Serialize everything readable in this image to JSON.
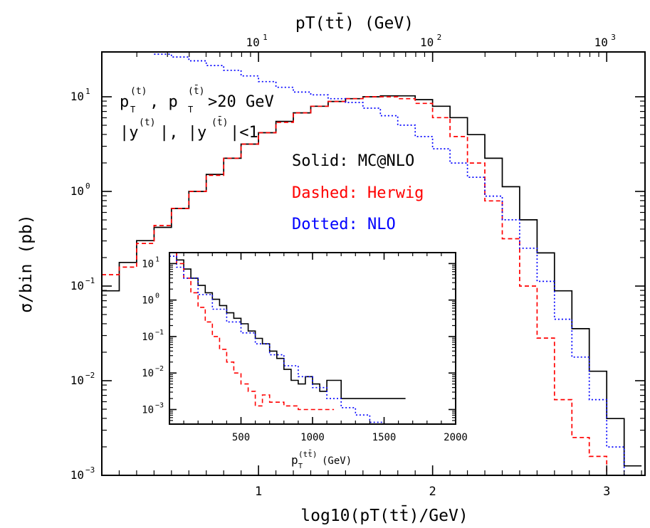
{
  "chart_data": [
    {
      "type": "line",
      "xlabel": "log10(pT(tt̄)/GeV)",
      "ylabel": "σ/bin (pb)",
      "top_axis_label": "pT(tt̄) (GeV)",
      "xlim": [
        0.1,
        3.22
      ],
      "ylim_log10": [
        -3,
        0.45
      ],
      "y_scale": "log",
      "x_ticks": [
        "1",
        "2",
        "3"
      ],
      "x_tick_values": [
        1,
        2,
        3
      ],
      "y_ticks": [
        "10",
        "10",
        "10",
        "10"
      ],
      "y_tick_exponents": [
        "1",
        "0",
        "−1",
        "−2",
        "−3"
      ],
      "top_ticks": [
        "10",
        "10",
        "10"
      ],
      "top_tick_exponents": [
        "1",
        "2",
        "3"
      ],
      "annotations": {
        "cut_line1_a": "p",
        "cut_line1_sub_a": "T",
        "cut_line1_sup_a": "(t)",
        "cut_line1_mid": ", p",
        "cut_line1_sub_b": "T",
        "cut_line1_sup_b": "(t̄)",
        "cut_line1_end": ">20 GeV",
        "cut_line2_a": "|y",
        "cut_line2_sup_a": "(t)",
        "cut_line2_mid": "|, |y",
        "cut_line2_sup_b": "(t̄)",
        "cut_line2_end": "|<1"
      },
      "series": [
        {
          "name": "Solid: MC@NLO",
          "color": "#000000",
          "style": "solid",
          "x": [
            0.1,
            0.2,
            0.3,
            0.4,
            0.5,
            0.6,
            0.7,
            0.8,
            0.9,
            1.0,
            1.1,
            1.2,
            1.3,
            1.4,
            1.5,
            1.6,
            1.7,
            1.8,
            1.9,
            2.0,
            2.1,
            2.2,
            2.3,
            2.4,
            2.5,
            2.6,
            2.7,
            2.8,
            2.9,
            3.0,
            3.1,
            3.2
          ],
          "log10_y": [
            -1.05,
            -0.75,
            -0.52,
            -0.38,
            -0.18,
            0.0,
            0.18,
            0.35,
            0.5,
            0.62,
            0.74,
            0.83,
            0.9,
            0.95,
            0.98,
            1.0,
            1.01,
            1.01,
            0.97,
            0.9,
            0.78,
            0.6,
            0.35,
            0.05,
            -0.3,
            -0.65,
            -1.05,
            -1.45,
            -1.9,
            -2.4,
            -2.9,
            -3.0
          ]
        },
        {
          "name": "Dashed: Herwig",
          "color": "#ff0000",
          "style": "dashed",
          "x": [
            0.1,
            0.2,
            0.3,
            0.4,
            0.5,
            0.6,
            0.7,
            0.8,
            0.9,
            1.0,
            1.1,
            1.2,
            1.3,
            1.4,
            1.5,
            1.6,
            1.7,
            1.8,
            1.9,
            2.0,
            2.1,
            2.2,
            2.3,
            2.4,
            2.5,
            2.6,
            2.7,
            2.8,
            2.9,
            3.0,
            3.1,
            3.2
          ],
          "log10_y": [
            -0.88,
            -0.8,
            -0.55,
            -0.36,
            -0.18,
            0.0,
            0.17,
            0.35,
            0.5,
            0.62,
            0.73,
            0.83,
            0.9,
            0.95,
            0.98,
            1.0,
            1.0,
            0.98,
            0.93,
            0.78,
            0.58,
            0.3,
            -0.1,
            -0.5,
            -1.0,
            -1.55,
            -2.2,
            -2.6,
            -2.8,
            -3.0,
            -3.2,
            -3.2
          ]
        },
        {
          "name": "Dotted: NLO",
          "color": "#0000ff",
          "style": "dotted",
          "x": [
            0.1,
            0.2,
            0.3,
            0.4,
            0.5,
            0.6,
            0.7,
            0.8,
            0.9,
            1.0,
            1.1,
            1.2,
            1.3,
            1.4,
            1.5,
            1.6,
            1.7,
            1.8,
            1.9,
            2.0,
            2.1,
            2.2,
            2.3,
            2.4,
            2.5,
            2.6,
            2.7,
            2.8,
            2.9,
            3.0,
            3.1,
            3.2
          ],
          "log10_y": [
            1.5,
            1.5,
            1.48,
            1.45,
            1.42,
            1.38,
            1.33,
            1.28,
            1.22,
            1.16,
            1.1,
            1.05,
            1.02,
            0.98,
            0.94,
            0.88,
            0.8,
            0.7,
            0.58,
            0.45,
            0.3,
            0.15,
            -0.05,
            -0.3,
            -0.6,
            -0.95,
            -1.35,
            -1.75,
            -2.2,
            -2.7,
            -3.0,
            -3.2
          ]
        }
      ]
    },
    {
      "type": "line",
      "xlabel": "pT(tt̄) (GeV)",
      "xlabel_main": "p",
      "xlabel_sub": "T",
      "xlabel_sup": "(tt̄)",
      "xlabel_unit": "(GeV)",
      "xlim": [
        0,
        2000
      ],
      "y_scale": "log",
      "ylim_log10": [
        -3.4,
        1.3
      ],
      "x_ticks": [
        "500",
        "1000",
        "1500",
        "2000"
      ],
      "x_tick_values": [
        500,
        1000,
        1500,
        2000
      ],
      "y_ticks": [
        "10",
        "10",
        "10",
        "10",
        "10"
      ],
      "y_tick_exponents": [
        "1",
        "0",
        "−1",
        "−2",
        "−3"
      ],
      "series": [
        {
          "name": "MC@NLO",
          "color": "#000000",
          "style": "solid",
          "x": [
            0,
            50,
            100,
            150,
            200,
            250,
            300,
            350,
            400,
            450,
            500,
            550,
            600,
            650,
            700,
            750,
            800,
            850,
            900,
            950,
            1000,
            1050,
            1100,
            1200,
            1300,
            1400,
            1500,
            1600,
            1650
          ],
          "log10_y": [
            1.3,
            1.1,
            0.85,
            0.6,
            0.4,
            0.2,
            0.02,
            -0.15,
            -0.35,
            -0.5,
            -0.65,
            -0.85,
            -1.05,
            -1.2,
            -1.4,
            -1.6,
            -1.9,
            -2.2,
            -2.3,
            -2.1,
            -2.3,
            -2.5,
            -2.2,
            -2.7,
            -2.7,
            -2.7,
            -2.7,
            -2.7,
            -4.0
          ]
        },
        {
          "name": "Herwig",
          "color": "#ff0000",
          "style": "dashed",
          "x": [
            0,
            50,
            100,
            150,
            200,
            250,
            300,
            350,
            400,
            450,
            500,
            550,
            600,
            650,
            700,
            800,
            900,
            1000,
            1100,
            1150
          ],
          "log10_y": [
            1.3,
            1.0,
            0.6,
            0.2,
            -0.2,
            -0.6,
            -1.0,
            -1.35,
            -1.7,
            -2.0,
            -2.3,
            -2.5,
            -2.9,
            -2.6,
            -2.8,
            -2.9,
            -3.0,
            -3.0,
            -3.0,
            -4.0
          ]
        },
        {
          "name": "NLO",
          "color": "#0000ff",
          "style": "dotted",
          "x": [
            0,
            50,
            100,
            200,
            300,
            400,
            500,
            600,
            700,
            800,
            900,
            1000,
            1100,
            1200,
            1300,
            1400,
            1500,
            1600,
            1700
          ],
          "log10_y": [
            1.2,
            0.9,
            0.6,
            0.15,
            -0.25,
            -0.6,
            -0.9,
            -1.2,
            -1.5,
            -1.8,
            -2.1,
            -2.4,
            -2.7,
            -2.95,
            -3.15,
            -3.35,
            -3.5,
            -3.7,
            -3.9
          ]
        }
      ]
    }
  ]
}
